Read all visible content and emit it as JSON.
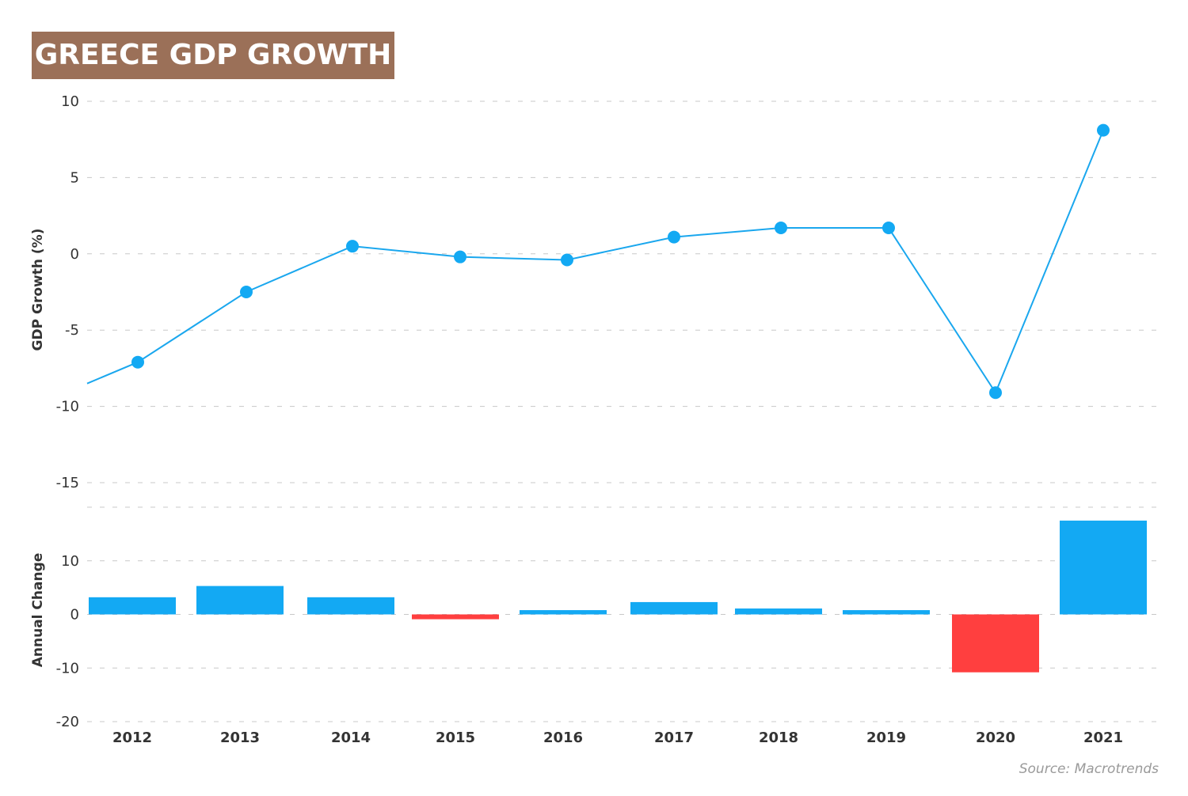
{
  "title": "GREECE GDP GROWTH",
  "source": "Source: Macrotrends",
  "colors": {
    "title_bg": "#9b7058",
    "line": "#1aa7ee",
    "positive": "#13a9f3",
    "negative": "#ff3f3f",
    "grid": "#c8c8c8"
  },
  "chart_data": [
    {
      "type": "line",
      "ylabel": "GDP Growth (%)",
      "ylim": [
        -15,
        10
      ],
      "yticks": [
        "10",
        "5",
        "0",
        "-5",
        "-10",
        "-15"
      ],
      "ytick_values": [
        10,
        5,
        0,
        -5,
        -10,
        -15
      ],
      "categories": [
        "2012",
        "2013",
        "2014",
        "2015",
        "2016",
        "2017",
        "2018",
        "2019",
        "2020",
        "2021"
      ],
      "values": [
        -7.1,
        -2.5,
        0.5,
        -0.2,
        -0.4,
        1.1,
        1.7,
        1.7,
        -9.1,
        8.1
      ],
      "start_value": -8.5,
      "grid": true
    },
    {
      "type": "bar",
      "ylabel": "Annual Change",
      "ylim": [
        -20,
        20
      ],
      "yticks": [
        "10",
        "0",
        "-10",
        "-20"
      ],
      "ytick_values": [
        10,
        0,
        -10,
        -20
      ],
      "categories": [
        "2012",
        "2013",
        "2014",
        "2015",
        "2016",
        "2017",
        "2018",
        "2019",
        "2020",
        "2021"
      ],
      "values": [
        3.2,
        5.3,
        3.2,
        -0.9,
        0.8,
        2.3,
        1.1,
        0.8,
        -10.8,
        17.5
      ],
      "grid": true
    }
  ]
}
